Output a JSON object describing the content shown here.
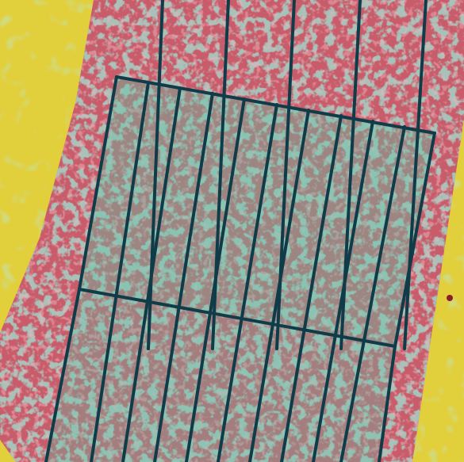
{
  "image": {
    "kind": "aerial false-color vegetation index map of an agricultural field with a plot grid overlay",
    "colors": {
      "background_soil": "#e2cf3c",
      "field_low_vigor": "#c95c6a",
      "field_high_vigor": "#56c7a8",
      "grid_lines": "#0f3c48",
      "pink_speckle": "#d8737f",
      "dark_spot": "#8a1f2a"
    },
    "grid": {
      "upper_block_columns": 10,
      "lower_block_columns": 11,
      "rows": 2
    }
  }
}
